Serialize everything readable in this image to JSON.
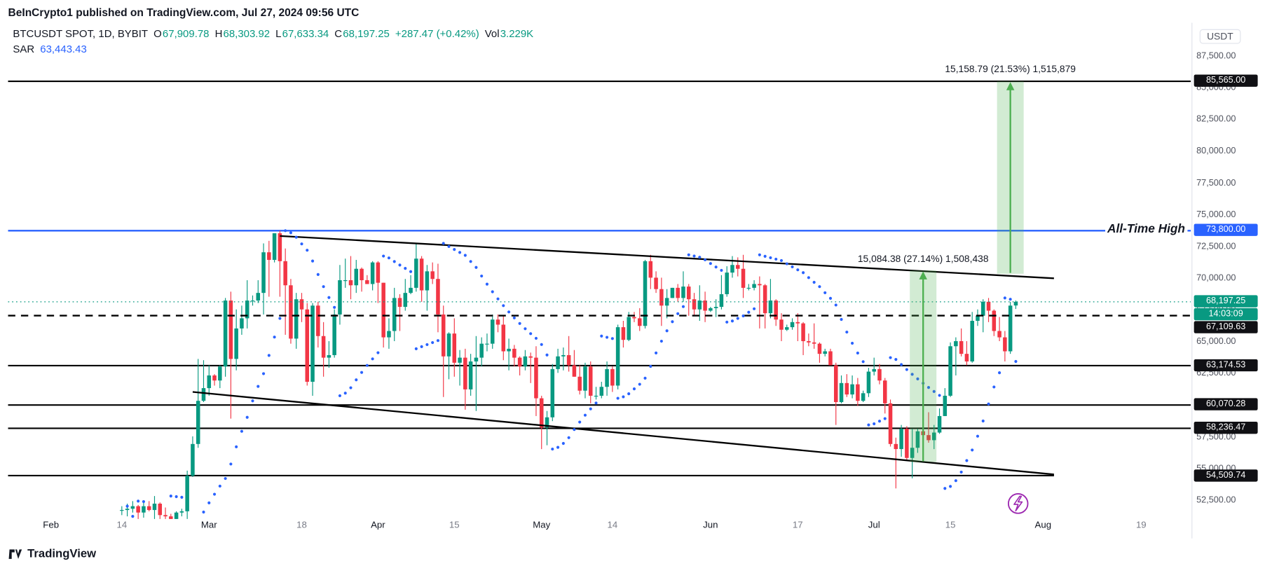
{
  "header": {
    "text": "BeInCrypto1 published on TradingView.com, Jul 27, 2024 09:56 UTC"
  },
  "legend": {
    "symbol": "BTCUSDT SPOT, 1D, BYBIT",
    "o_label": "O",
    "o_value": "67,909.78",
    "h_label": "H",
    "h_value": "68,303.92",
    "l_label": "L",
    "l_value": "67,633.34",
    "c_label": "C",
    "c_value": "68,197.25",
    "change": "+287.47 (+0.42%)",
    "vol_label": "Vol",
    "vol_value": "3.229K",
    "sar_label": "SAR",
    "sar_value": "63,443.43"
  },
  "price_badges": [
    {
      "text": "85,565.00",
      "price": 85565,
      "color": "black"
    },
    {
      "text": "73,800.00",
      "price": 73800,
      "color": "blue"
    },
    {
      "text": "68,197.25",
      "price": 68197.25,
      "color": "green"
    },
    {
      "text": "14:03:09",
      "price": 68197.25,
      "color": "green",
      "countdown": true
    },
    {
      "text": "67,109.63",
      "price": 67109.63,
      "color": "black"
    },
    {
      "text": "63,174.53",
      "price": 63174.53,
      "color": "black"
    },
    {
      "text": "60,070.28",
      "price": 60070.28,
      "color": "black"
    },
    {
      "text": "58,236.47",
      "price": 58236.47,
      "color": "black"
    },
    {
      "text": "54,509.74",
      "price": 54509.74,
      "color": "black"
    }
  ],
  "icons": {
    "flash": {
      "color": "#9c27b0"
    }
  },
  "footer": {
    "brand": "TradingView"
  },
  "chart_data": {
    "type": "candlestick",
    "symbol": "BTCUSDT",
    "market": "SPOT",
    "interval": "1D",
    "exchange": "BYBIT",
    "last_price": 68197.25,
    "countdown": "14:03:09",
    "colors": {
      "up": "#089981",
      "down": "#f23645",
      "projection_fill": "rgba(76,175,80,0.25)",
      "projection_arrow": "#4caf50"
    },
    "y_axis": {
      "min": 52500,
      "max": 87500,
      "tick_step": 2500,
      "currency": "USDT"
    },
    "x_ticks": [
      {
        "label": "Feb",
        "date": "2024-02-01",
        "major": true
      },
      {
        "label": "14",
        "date": "2024-02-14",
        "major": false
      },
      {
        "label": "Mar",
        "date": "2024-03-01",
        "major": true
      },
      {
        "label": "18",
        "date": "2024-03-18",
        "major": false
      },
      {
        "label": "Apr",
        "date": "2024-04-01",
        "major": true
      },
      {
        "label": "15",
        "date": "2024-04-15",
        "major": false
      },
      {
        "label": "May",
        "date": "2024-05-01",
        "major": true
      },
      {
        "label": "14",
        "date": "2024-05-14",
        "major": false
      },
      {
        "label": "Jun",
        "date": "2024-06-01",
        "major": true
      },
      {
        "label": "17",
        "date": "2024-06-17",
        "major": false
      },
      {
        "label": "Jul",
        "date": "2024-07-01",
        "major": true
      },
      {
        "label": "15",
        "date": "2024-07-15",
        "major": false
      },
      {
        "label": "Aug",
        "date": "2024-08-01",
        "major": true
      },
      {
        "label": "19",
        "date": "2024-08-19",
        "major": false
      }
    ],
    "levels": [
      {
        "price": 85565,
        "style": "solid",
        "color": "#000000",
        "width": 1.8
      },
      {
        "price": 73800,
        "style": "solid",
        "color": "#2962ff",
        "width": 2,
        "label": "All-Time High"
      },
      {
        "price": 68197.25,
        "style": "dotted",
        "color": "#089981",
        "width": 1,
        "overlay": true
      },
      {
        "price": 67109.63,
        "style": "dashed",
        "color": "#000000",
        "width": 2,
        "overlay": true
      },
      {
        "price": 63174.53,
        "style": "solid",
        "color": "#000000",
        "width": 1.8
      },
      {
        "price": 60070.28,
        "style": "solid",
        "color": "#000000",
        "width": 1.8
      },
      {
        "price": 58236.47,
        "style": "solid",
        "color": "#000000",
        "width": 1.8
      },
      {
        "price": 54509.74,
        "style": "solid",
        "color": "#000000",
        "width": 1.8,
        "end_date": "2024-08-03"
      }
    ],
    "trendlines": [
      {
        "from": {
          "date": "2024-03-14",
          "price": 73385
        },
        "to": {
          "date": "2024-08-03",
          "price": 70050
        }
      },
      {
        "from": {
          "date": "2024-02-27",
          "price": 61100
        },
        "to": {
          "date": "2024-08-03",
          "price": 54600
        }
      }
    ],
    "projections": [
      {
        "label": "15,084.38 (27.14%) 1,508,438",
        "from_price": 55580,
        "to_price": 70664.38,
        "start_date": "2024-07-08",
        "end_date": "2024-07-12"
      },
      {
        "label": "15,158.79 (21.53%) 1,515,879",
        "from_price": 70408,
        "to_price": 85566.79,
        "start_date": "2024-07-24",
        "end_date": "2024-07-28"
      }
    ],
    "indicators": {
      "sar": {
        "name": "SAR",
        "value_label": "63,443.43",
        "color": "#2962ff"
      }
    },
    "start_date": "2024-02-14",
    "ohlc": [
      [
        51800,
        52100,
        51400,
        51800
      ],
      [
        51800,
        52300,
        51300,
        51900
      ],
      [
        51900,
        52500,
        51600,
        52100
      ],
      [
        52100,
        52200,
        50600,
        51600
      ],
      [
        51600,
        52400,
        51200,
        52100
      ],
      [
        52100,
        52500,
        51700,
        51800
      ],
      [
        51800,
        52900,
        50700,
        52300
      ],
      [
        52300,
        52400,
        50800,
        51400
      ],
      [
        51400,
        52000,
        50900,
        51300
      ],
      [
        51300,
        51500,
        50500,
        50700
      ],
      [
        50700,
        51700,
        50600,
        51600
      ],
      [
        51600,
        51900,
        51300,
        51700
      ],
      [
        51700,
        54900,
        50900,
        54500
      ],
      [
        54500,
        57600,
        54400,
        57000
      ],
      [
        57000,
        63700,
        56700,
        60400
      ],
      [
        60400,
        63600,
        60300,
        61400
      ],
      [
        61400,
        63200,
        60800,
        62400
      ],
      [
        62400,
        62500,
        61600,
        62000
      ],
      [
        62000,
        63200,
        61400,
        63100
      ],
      [
        63100,
        68500,
        62300,
        68300
      ],
      [
        68300,
        69000,
        59000,
        63700
      ],
      [
        63700,
        67600,
        62800,
        66100
      ],
      [
        66100,
        67900,
        65600,
        66900
      ],
      [
        66900,
        69900,
        66100,
        68300
      ],
      [
        68300,
        68700,
        67900,
        68300
      ],
      [
        68300,
        69900,
        68100,
        68900
      ],
      [
        68900,
        72800,
        67200,
        72100
      ],
      [
        72100,
        73000,
        68600,
        71500
      ],
      [
        71500,
        73600,
        71300,
        73600
      ],
      [
        73600,
        73800,
        68600,
        71400
      ],
      [
        71400,
        72400,
        65600,
        69500
      ],
      [
        69500,
        70000,
        64900,
        65300
      ],
      [
        65300,
        68900,
        64500,
        68400
      ],
      [
        68400,
        68900,
        66600,
        67600
      ],
      [
        67600,
        68100,
        61600,
        61900
      ],
      [
        61900,
        68100,
        60800,
        67900
      ],
      [
        67900,
        68200,
        64600,
        65500
      ],
      [
        65500,
        66600,
        62300,
        63800
      ],
      [
        63800,
        65100,
        63000,
        64000
      ],
      [
        64000,
        67600,
        63800,
        67200
      ],
      [
        67200,
        71100,
        66400,
        69900
      ],
      [
        69900,
        71600,
        69300,
        69900
      ],
      [
        69900,
        71800,
        68400,
        69500
      ],
      [
        69500,
        71500,
        68900,
        70800
      ],
      [
        70800,
        70900,
        69000,
        69900
      ],
      [
        69900,
        70300,
        69600,
        69600
      ],
      [
        69600,
        71400,
        69100,
        71300
      ],
      [
        71300,
        71400,
        68100,
        69700
      ],
      [
        69700,
        69700,
        64600,
        65400
      ],
      [
        65400,
        66900,
        64500,
        65900
      ],
      [
        65900,
        69300,
        65100,
        68500
      ],
      [
        68500,
        68800,
        65900,
        67800
      ],
      [
        67800,
        70000,
        67500,
        68900
      ],
      [
        68900,
        70300,
        68800,
        69300
      ],
      [
        69300,
        72800,
        69000,
        71600
      ],
      [
        71600,
        71800,
        68200,
        69100
      ],
      [
        69100,
        71100,
        67500,
        70600
      ],
      [
        70600,
        71300,
        69600,
        70000
      ],
      [
        70000,
        71200,
        65800,
        67200
      ],
      [
        67200,
        67900,
        60700,
        63900
      ],
      [
        63900,
        65800,
        62100,
        65700
      ],
      [
        65700,
        66900,
        62300,
        63400
      ],
      [
        63400,
        64400,
        61600,
        63800
      ],
      [
        63800,
        64500,
        59700,
        61300
      ],
      [
        61300,
        64100,
        60800,
        63500
      ],
      [
        63500,
        65500,
        59600,
        63800
      ],
      [
        63800,
        65400,
        63100,
        64900
      ],
      [
        64900,
        65700,
        64300,
        64900
      ],
      [
        64900,
        67200,
        64500,
        66800
      ],
      [
        66800,
        67200,
        65800,
        66400
      ],
      [
        66400,
        67100,
        63600,
        64300
      ],
      [
        64300,
        65300,
        62800,
        64500
      ],
      [
        64500,
        64800,
        63100,
        63800
      ],
      [
        63800,
        63900,
        62400,
        63100
      ],
      [
        63100,
        64400,
        62800,
        63900
      ],
      [
        63900,
        64200,
        61800,
        63800
      ],
      [
        63800,
        64700,
        59200,
        60600
      ],
      [
        60600,
        60800,
        56600,
        58300
      ],
      [
        58300,
        59600,
        56900,
        59100
      ],
      [
        59100,
        63300,
        58800,
        62900
      ],
      [
        62900,
        64500,
        62600,
        63900
      ],
      [
        63900,
        64600,
        62800,
        64000
      ],
      [
        64000,
        65500,
        62700,
        63200
      ],
      [
        63200,
        64400,
        62300,
        62300
      ],
      [
        62300,
        63200,
        60900,
        61200
      ],
      [
        61200,
        63400,
        60600,
        63100
      ],
      [
        63100,
        63500,
        60200,
        60800
      ],
      [
        60800,
        61500,
        60500,
        60800
      ],
      [
        60800,
        61900,
        60600,
        61500
      ],
      [
        61500,
        63500,
        60800,
        62900
      ],
      [
        62900,
        63100,
        61100,
        61600
      ],
      [
        61600,
        66400,
        61300,
        66200
      ],
      [
        66200,
        66700,
        64600,
        65200
      ],
      [
        65200,
        67400,
        65100,
        67000
      ],
      [
        67000,
        67400,
        66600,
        66900
      ],
      [
        66900,
        67700,
        65900,
        66300
      ],
      [
        66300,
        71500,
        66100,
        71400
      ],
      [
        71400,
        71900,
        69200,
        70100
      ],
      [
        70100,
        70600,
        68900,
        69200
      ],
      [
        69200,
        70100,
        66300,
        67900
      ],
      [
        67900,
        69200,
        66900,
        68500
      ],
      [
        68500,
        69300,
        68500,
        69300
      ],
      [
        69300,
        69600,
        68200,
        68500
      ],
      [
        68500,
        70600,
        68200,
        69400
      ],
      [
        69400,
        69600,
        67100,
        68400
      ],
      [
        68400,
        68900,
        67100,
        67600
      ],
      [
        67600,
        69500,
        66700,
        68300
      ],
      [
        68300,
        69000,
        66600,
        67500
      ],
      [
        67500,
        67800,
        67400,
        67700
      ],
      [
        67700,
        68400,
        67000,
        67800
      ],
      [
        67800,
        70300,
        67600,
        68800
      ],
      [
        68800,
        71000,
        68600,
        70500
      ],
      [
        70500,
        71800,
        70100,
        71100
      ],
      [
        71100,
        71700,
        70200,
        70800
      ],
      [
        70800,
        71900,
        68500,
        69300
      ],
      [
        69300,
        69600,
        69100,
        69300
      ],
      [
        69300,
        69900,
        69100,
        69600
      ],
      [
        69600,
        70200,
        66100,
        69500
      ],
      [
        69500,
        69600,
        66100,
        67300
      ],
      [
        67300,
        70000,
        66900,
        68300
      ],
      [
        68300,
        68400,
        66300,
        66800
      ],
      [
        66800,
        67300,
        65100,
        66000
      ],
      [
        66000,
        66400,
        65900,
        66200
      ],
      [
        66200,
        66900,
        66000,
        66600
      ],
      [
        66600,
        67300,
        65100,
        66500
      ],
      [
        66500,
        66600,
        64000,
        65100
      ],
      [
        65100,
        65700,
        64700,
        65000
      ],
      [
        65000,
        66500,
        64500,
        64900
      ],
      [
        64900,
        65000,
        63400,
        64100
      ],
      [
        64100,
        64500,
        63900,
        64300
      ],
      [
        64300,
        64500,
        63200,
        63200
      ],
      [
        63200,
        63400,
        58500,
        60300
      ],
      [
        60300,
        62400,
        60200,
        61800
      ],
      [
        61800,
        62500,
        60700,
        60900
      ],
      [
        60900,
        62400,
        60600,
        61700
      ],
      [
        61700,
        62200,
        60000,
        60400
      ],
      [
        60400,
        61200,
        60300,
        61000
      ],
      [
        61000,
        63000,
        60700,
        62700
      ],
      [
        62700,
        63800,
        62400,
        62900
      ],
      [
        62900,
        63300,
        61700,
        62000
      ],
      [
        62000,
        62200,
        59400,
        60200
      ],
      [
        60200,
        60500,
        56800,
        57000
      ],
      [
        57000,
        57500,
        53500,
        56600
      ],
      [
        56600,
        58500,
        56000,
        58200
      ],
      [
        58200,
        58400,
        55700,
        55900
      ],
      [
        55900,
        58200,
        54300,
        56700
      ],
      [
        56700,
        58200,
        56300,
        58000
      ],
      [
        58000,
        59400,
        57200,
        57700
      ],
      [
        57700,
        59500,
        57100,
        57300
      ],
      [
        57300,
        58500,
        56600,
        57900
      ],
      [
        57900,
        59800,
        57800,
        59200
      ],
      [
        59200,
        61400,
        59200,
        60800
      ],
      [
        60800,
        65000,
        60700,
        64700
      ],
      [
        64700,
        65400,
        62400,
        65100
      ],
      [
        65100,
        66100,
        63900,
        64100
      ],
      [
        64100,
        65100,
        63200,
        63500
      ],
      [
        63500,
        67400,
        63400,
        66700
      ],
      [
        66700,
        67600,
        66300,
        67100
      ],
      [
        67100,
        68400,
        65800,
        68200
      ],
      [
        68200,
        68500,
        66600,
        67500
      ],
      [
        67500,
        67600,
        65500,
        65900
      ],
      [
        65900,
        67000,
        65100,
        65400
      ],
      [
        65400,
        65900,
        63500,
        64300
      ],
      [
        64300,
        68200,
        64100,
        67900
      ],
      [
        67909.78,
        68303.92,
        67633.34,
        68197.25
      ]
    ]
  }
}
